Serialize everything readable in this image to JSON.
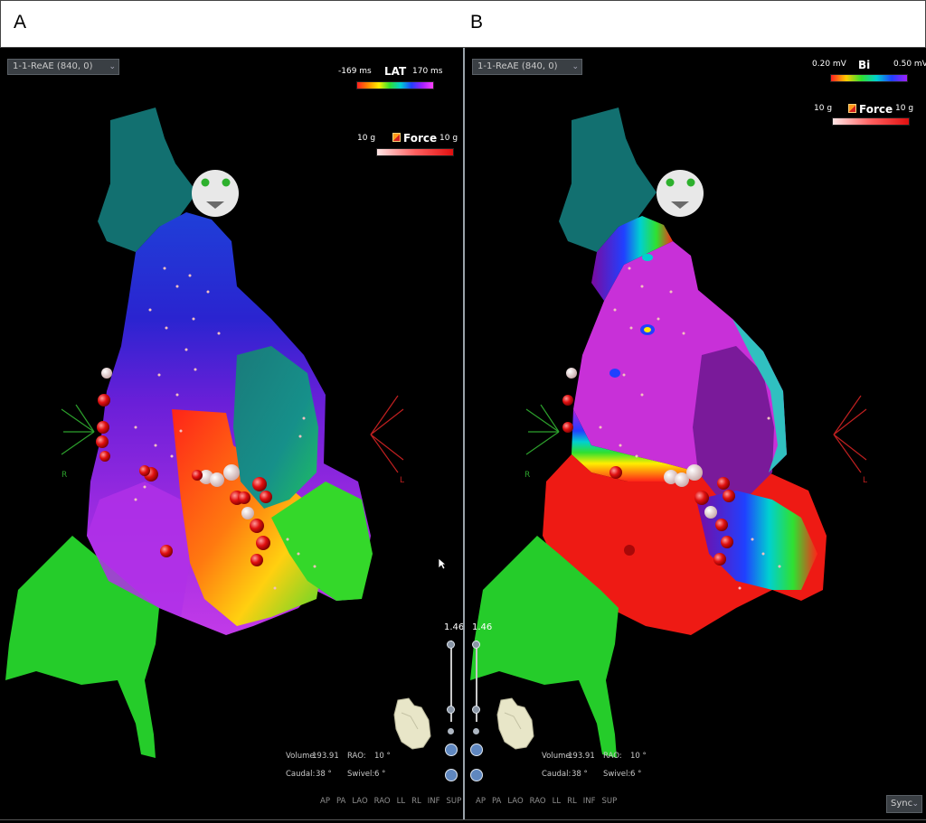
{
  "header": {
    "panel_a": "A",
    "panel_b": "B"
  },
  "panel_a": {
    "map_select": "1-1-ReAE (840, 0)",
    "scale": {
      "min": "-169 ms",
      "title": "LAT",
      "max": "170 ms"
    },
    "force": {
      "min": "10 g",
      "title": "Force",
      "max": "10 g"
    },
    "orientation": {
      "right": "R",
      "left": "L"
    },
    "zoom": "1.46",
    "info": {
      "volume_label": "Volume:",
      "volume_value": "193.91",
      "rao_label": "RAO:",
      "rao_value": "10 °",
      "caudal_label": "Caudal:",
      "caudal_value": "38 °",
      "swivel_label": "Swivel:",
      "swivel_value": "6 °"
    },
    "views": [
      "AP",
      "PA",
      "LAO",
      "RAO",
      "LL",
      "RL",
      "INF",
      "SUP"
    ]
  },
  "panel_b": {
    "map_select": "1-1-ReAE (840, 0)",
    "scale": {
      "min": "0.20 mV",
      "title": "Bi",
      "max": "0.50 mV"
    },
    "force": {
      "min": "10 g",
      "title": "Force",
      "max": "10 g"
    },
    "orientation": {
      "right": "R",
      "left": "L"
    },
    "zoom": "1.46",
    "info": {
      "volume_label": "Volume:",
      "volume_value": "193.91",
      "rao_label": "RAO:",
      "rao_value": "10 °",
      "caudal_label": "Caudal:",
      "caudal_value": "38 °",
      "swivel_label": "Swivel:",
      "swivel_value": "6 °"
    },
    "views": [
      "AP",
      "PA",
      "LAO",
      "RAO",
      "LL",
      "RL",
      "INF",
      "SUP"
    ],
    "sync_label": "Sync"
  },
  "colors": {
    "background": "#000000",
    "header_bg": "#ffffff",
    "lat_scale": [
      "#ff2020",
      "#ff8a00",
      "#ffee00",
      "#30e030",
      "#00d0d0",
      "#2040ff",
      "#a020ff",
      "#ff40ff"
    ],
    "bi_scale": [
      "#ff2020",
      "#ffcc00",
      "#30e030",
      "#00d0d0",
      "#2040ff",
      "#a020ff"
    ],
    "ablation_marker": "#e01010"
  },
  "icons": [
    "head-orientation-icon",
    "heart-thumbnail-icon",
    "orientation-axis-icon",
    "force-icon",
    "chevron-down-icon",
    "mouse-cursor-icon"
  ]
}
